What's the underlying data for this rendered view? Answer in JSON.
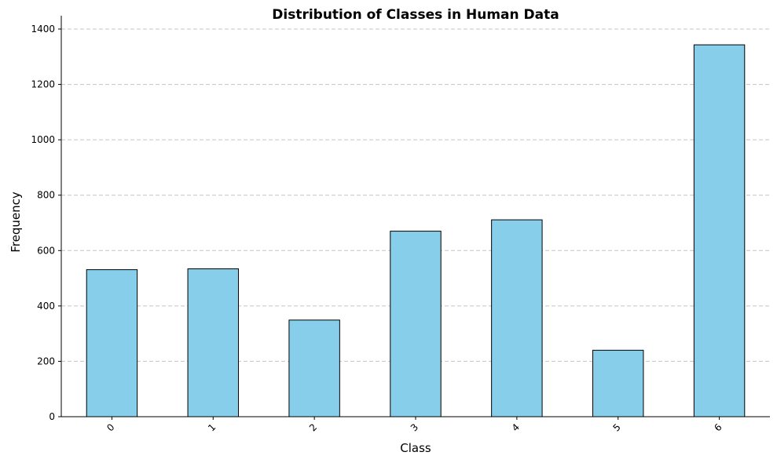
{
  "chart_data": {
    "type": "bar",
    "title": "Distribution of Classes in Human Data",
    "xlabel": "Class",
    "ylabel": "Frequency",
    "categories": [
      "0",
      "1",
      "2",
      "3",
      "4",
      "5",
      "6"
    ],
    "values": [
      531,
      534,
      349,
      670,
      711,
      240,
      1343
    ],
    "ylim": [
      0,
      1400
    ],
    "yticks": [
      0,
      200,
      400,
      600,
      800,
      1000,
      1200,
      1400
    ],
    "grid": "y-dashed",
    "legend": "none",
    "colors": {
      "bar_fill": "#87ceeb",
      "bar_edge": "#000000",
      "grid": "#c4c4c4"
    }
  }
}
